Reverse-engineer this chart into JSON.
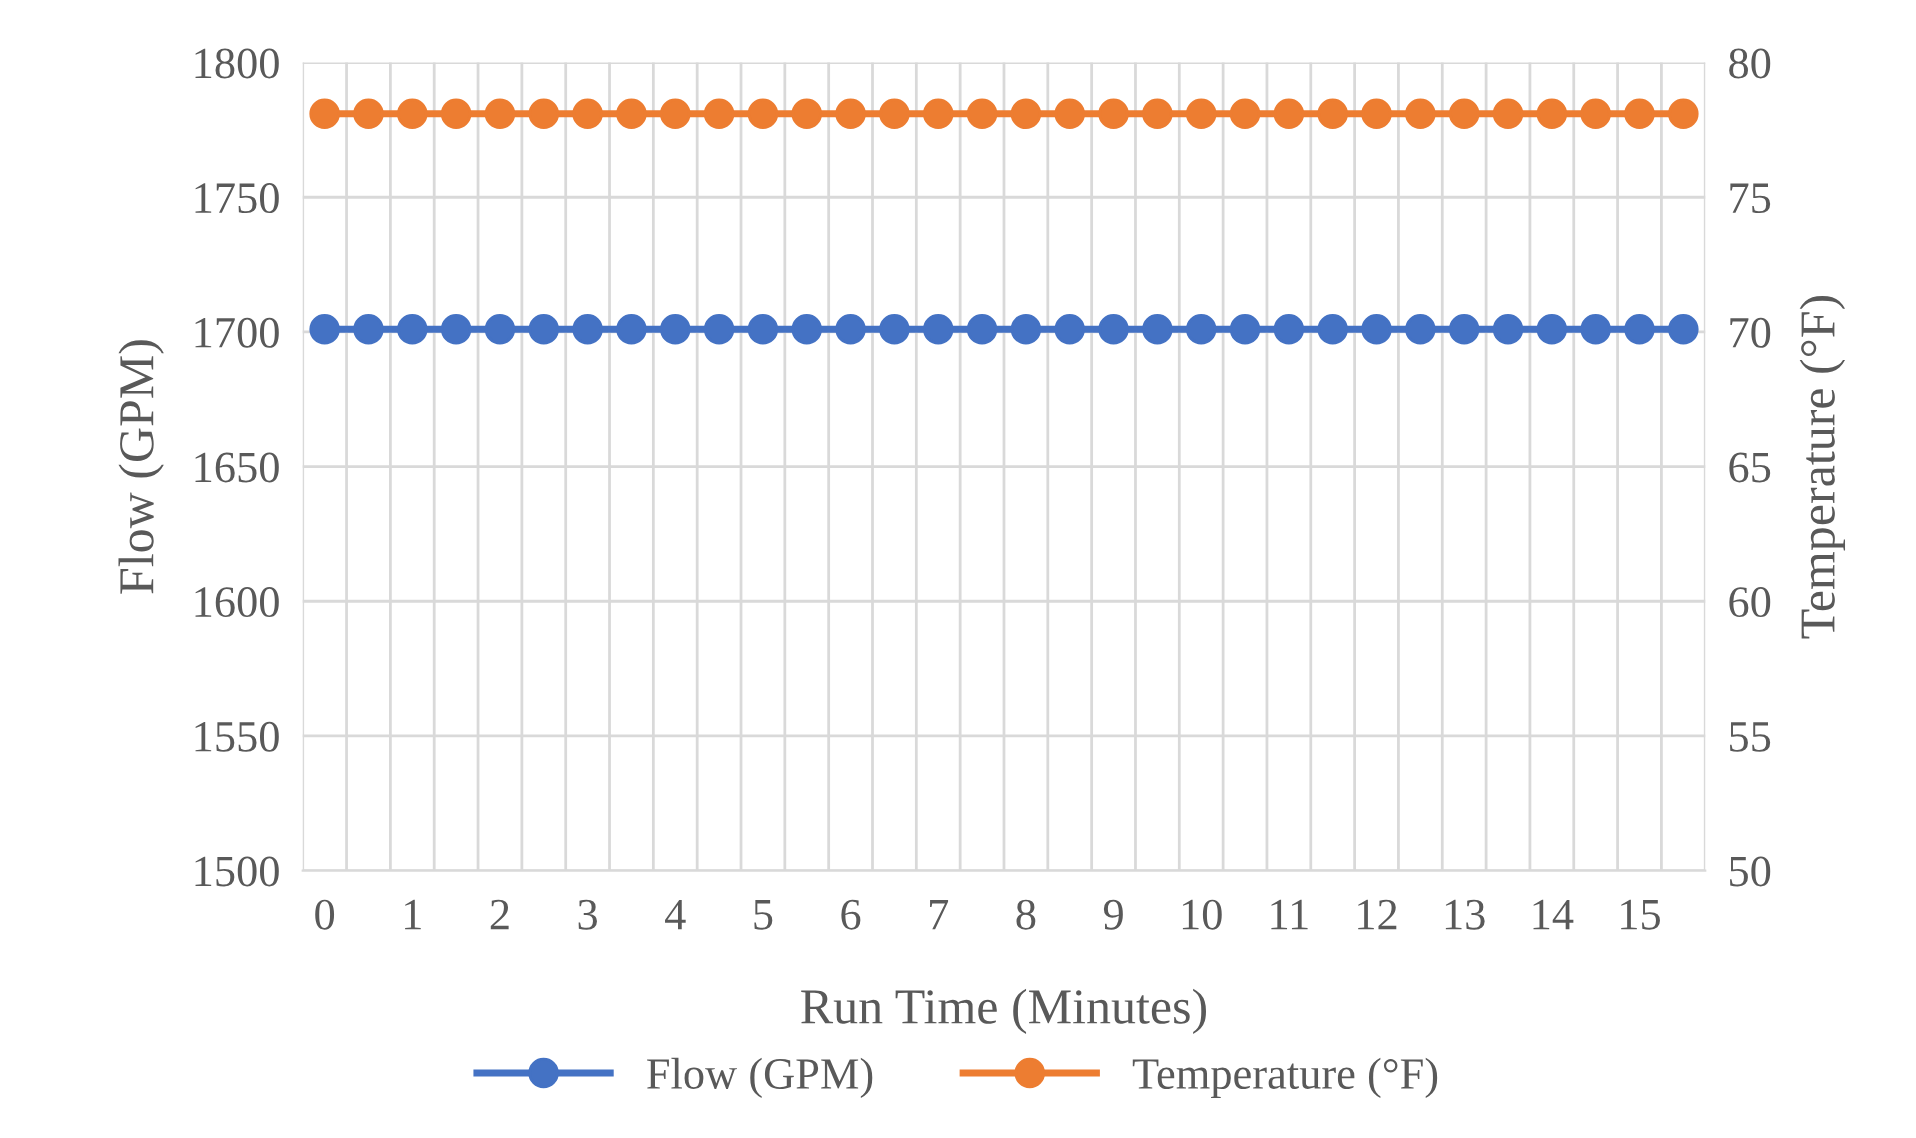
{
  "chart_data": {
    "type": "line",
    "xlabel": "Run Time (Minutes)",
    "ylabel": "Flow (GPM)",
    "y2label": "Temperature (°F)",
    "categories": [
      "0",
      null,
      "1",
      null,
      "2",
      null,
      "3",
      null,
      "4",
      null,
      "5",
      null,
      "6",
      null,
      "7",
      null,
      "8",
      null,
      "9",
      null,
      "10",
      null,
      "11",
      null,
      "12",
      null,
      "13",
      null,
      "14",
      null,
      "15",
      null
    ],
    "series": [
      {
        "name": "Flow (GPM)",
        "color": "#4472c4",
        "values": [
          1701,
          1701,
          1701,
          1701,
          1701,
          1701,
          1701,
          1701,
          1701,
          1701,
          1701,
          1701,
          1701,
          1701,
          1701,
          1701,
          1701,
          1701,
          1701,
          1701,
          1701,
          1701,
          1701,
          1701,
          1701,
          1701,
          1701,
          1701,
          1701,
          1701,
          1701,
          1701
        ]
      },
      {
        "name": "Temperature (°F)",
        "color": "#ed7d31",
        "axis": "y2",
        "values": [
          78.1,
          78.1,
          78.1,
          78.1,
          78.1,
          78.1,
          78.1,
          78.1,
          78.1,
          78.1,
          78.1,
          78.1,
          78.1,
          78.1,
          78.1,
          78.1,
          78.1,
          78.1,
          78.1,
          78.1,
          78.1,
          78.1,
          78.1,
          78.1,
          78.1,
          78.1,
          78.1,
          78.1,
          78.1,
          78.1,
          78.1,
          78.1
        ]
      }
    ],
    "ylim": [
      1500,
      1800
    ],
    "yticks": [
      1500,
      1550,
      1600,
      1650,
      1700,
      1750,
      1800
    ],
    "y2lim": [
      50,
      80
    ],
    "y2ticks": [
      50,
      55,
      60,
      65,
      70,
      75,
      80
    ],
    "grid": true,
    "legend": "bottom",
    "marker": "circle",
    "line_style": "solid"
  }
}
